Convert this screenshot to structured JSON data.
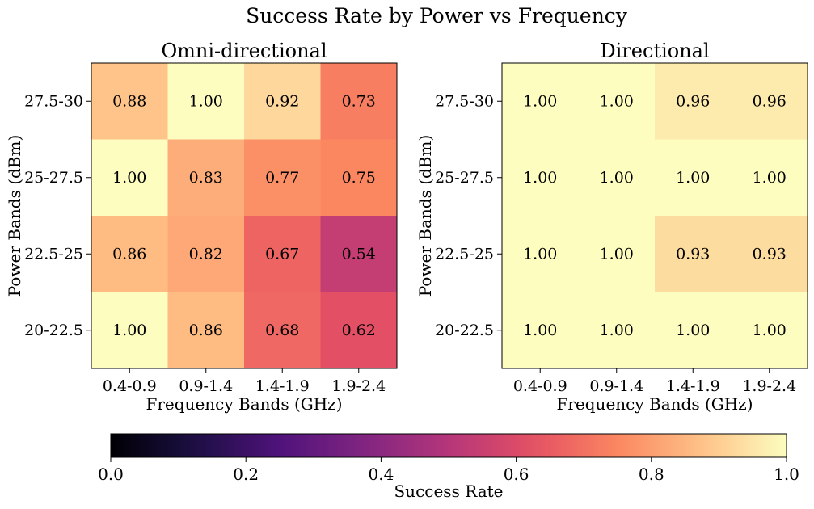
{
  "chart_data": {
    "type": "heatmap",
    "title": "Success Rate by Power vs Frequency",
    "colormap": "magma",
    "panels": [
      {
        "title": "Omni-directional",
        "xlabel": "Frequency Bands (GHz)",
        "ylabel": "Power Bands (dBm)",
        "x_categories": [
          "0.4-0.9",
          "0.9-1.4",
          "1.4-1.9",
          "1.9-2.4"
        ],
        "y_categories": [
          "27.5-30",
          "25-27.5",
          "22.5-25",
          "20-22.5"
        ],
        "values": [
          [
            0.88,
            1.0,
            0.92,
            0.73
          ],
          [
            1.0,
            0.83,
            0.77,
            0.75
          ],
          [
            0.86,
            0.82,
            0.67,
            0.54
          ],
          [
            1.0,
            0.86,
            0.68,
            0.62
          ]
        ],
        "labels": [
          [
            "0.88",
            "1.00",
            "0.92",
            "0.73"
          ],
          [
            "1.00",
            "0.83",
            "0.77",
            "0.75"
          ],
          [
            "0.86",
            "0.82",
            "0.67",
            "0.54"
          ],
          [
            "1.00",
            "0.86",
            "0.68",
            "0.62"
          ]
        ]
      },
      {
        "title": "Directional",
        "xlabel": "Frequency Bands (GHz)",
        "ylabel": "Power Bands (dBm)",
        "x_categories": [
          "0.4-0.9",
          "0.9-1.4",
          "1.4-1.9",
          "1.9-2.4"
        ],
        "y_categories": [
          "27.5-30",
          "25-27.5",
          "22.5-25",
          "20-22.5"
        ],
        "values": [
          [
            1.0,
            1.0,
            0.96,
            0.96
          ],
          [
            1.0,
            1.0,
            1.0,
            1.0
          ],
          [
            1.0,
            1.0,
            0.93,
            0.93
          ],
          [
            1.0,
            1.0,
            1.0,
            1.0
          ]
        ],
        "labels": [
          [
            "1.00",
            "1.00",
            "0.96",
            "0.96"
          ],
          [
            "1.00",
            "1.00",
            "1.00",
            "1.00"
          ],
          [
            "1.00",
            "1.00",
            "0.93",
            "0.93"
          ],
          [
            "1.00",
            "1.00",
            "1.00",
            "1.00"
          ]
        ]
      }
    ],
    "colorbar": {
      "label": "Success Rate",
      "range": [
        0.0,
        1.0
      ],
      "ticks": [
        "0.0",
        "0.2",
        "0.4",
        "0.6",
        "0.8",
        "1.0"
      ],
      "orientation": "horizontal"
    }
  }
}
